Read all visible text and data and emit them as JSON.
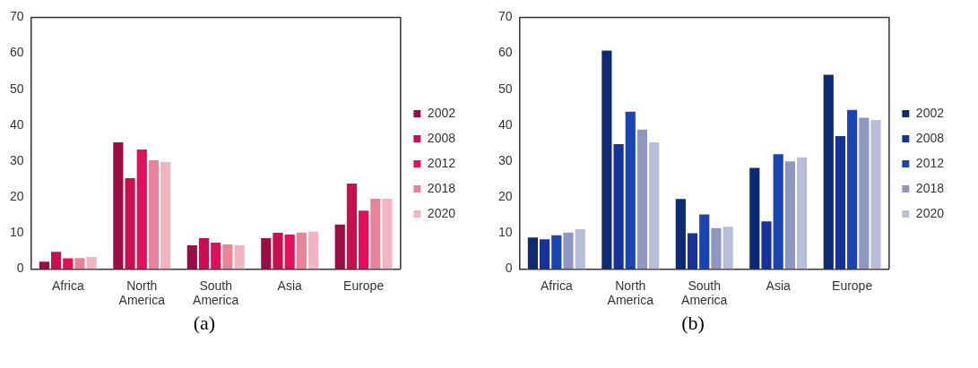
{
  "chart_data": [
    {
      "type": "bar",
      "categories": [
        "Africa",
        "North America",
        "South America",
        "Asia",
        "Europe"
      ],
      "ylim": [
        0,
        70
      ],
      "yticks": [
        0,
        10,
        20,
        30,
        40,
        50,
        60,
        70
      ],
      "grid": false,
      "legend": "right",
      "annotations": [
        "(a)"
      ],
      "series": [
        {
          "name": "2002",
          "color": "#9b0d45",
          "values": [
            2.3,
            35.5,
            6.8,
            8.8,
            12.6
          ]
        },
        {
          "name": "2008",
          "color": "#c8104f",
          "values": [
            5,
            25.5,
            8.8,
            10.3,
            24
          ]
        },
        {
          "name": "2012",
          "color": "#e0105a",
          "values": [
            3.2,
            33.5,
            7.6,
            9.8,
            16.5
          ]
        },
        {
          "name": "2018",
          "color": "#e8849a",
          "values": [
            3.3,
            30.5,
            7.1,
            10.4,
            19.8
          ]
        },
        {
          "name": "2020",
          "color": "#f0b5c0",
          "values": [
            3.6,
            30,
            6.9,
            10.6,
            19.8
          ]
        }
      ]
    },
    {
      "type": "bar",
      "categories": [
        "Africa",
        "North America",
        "South America",
        "Asia",
        "Europe"
      ],
      "ylim": [
        0,
        70
      ],
      "yticks": [
        0,
        10,
        20,
        30,
        40,
        50,
        60,
        70
      ],
      "grid": false,
      "legend": "right",
      "annotations": [
        "(b)"
      ],
      "series": [
        {
          "name": "2002",
          "color": "#0d2a73",
          "values": [
            9,
            61,
            19.7,
            28.4,
            54.3
          ]
        },
        {
          "name": "2008",
          "color": "#17339a",
          "values": [
            8.5,
            35,
            10.2,
            13.5,
            37.2
          ]
        },
        {
          "name": "2012",
          "color": "#1a44b0",
          "values": [
            9.6,
            44,
            15.4,
            32.2,
            44.5
          ]
        },
        {
          "name": "2018",
          "color": "#8f96bf",
          "values": [
            10.4,
            39,
            11.6,
            30.2,
            42.3
          ]
        },
        {
          "name": "2020",
          "color": "#b8bdd8",
          "values": [
            11.3,
            35.5,
            12,
            31.3,
            41.7
          ]
        }
      ]
    }
  ]
}
